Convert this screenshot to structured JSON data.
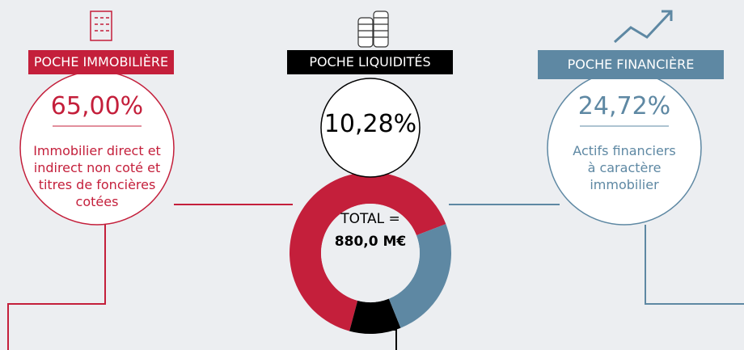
{
  "chart_data": {
    "type": "donut",
    "categories": [
      "POCHE IMMOBILIÈRE",
      "POCHE LIQUIDITÉS",
      "POCHE FINANCIÈRE"
    ],
    "values": [
      65.0,
      10.28,
      24.72
    ],
    "value_labels": [
      "65,00%",
      "10,28%",
      "24,72%"
    ],
    "colors": [
      "#c41f3b",
      "#000000",
      "#5e88a3"
    ],
    "descriptions": [
      "Immobilier direct et indirect non coté et titres de foncières cotées",
      null,
      "Actifs financiers à caractère immobilier"
    ],
    "center_label": [
      "TOTAL =",
      "880,0 M€"
    ]
  }
}
